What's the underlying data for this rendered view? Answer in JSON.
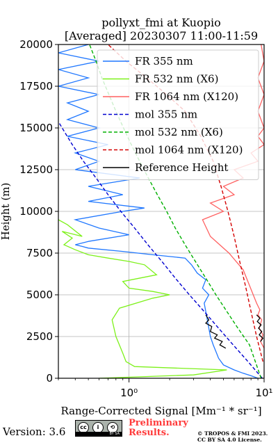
{
  "chart_data": {
    "type": "line",
    "title": "pollyxt_fmi at Kuopio",
    "subtitle": "[Averaged] 20230307 11:00-11:59",
    "xlabel": "Range-Corrected Signal [Mm⁻¹ * sr⁻¹]",
    "ylabel": "Height (m)",
    "xscale": "log",
    "xlim": [
      0.3,
      10
    ],
    "ylim": [
      0,
      20000
    ],
    "x_ticks": [
      1,
      10
    ],
    "x_tick_labels": [
      "10⁰",
      "10¹"
    ],
    "y_ticks": [
      0,
      2500,
      5000,
      7500,
      10000,
      12500,
      15000,
      17500,
      20000
    ],
    "y_tick_labels": [
      "0",
      "2500",
      "5000",
      "7500",
      "10000",
      "12500",
      "15000",
      "17500",
      "20000"
    ],
    "grid": true,
    "legend_position": "upper-right",
    "series": [
      {
        "name": "FR 355 nm",
        "color": "#1f77ff",
        "style": "solid",
        "points": [
          [
            9.0,
            0
          ],
          [
            8.0,
            150
          ],
          [
            7.0,
            300
          ],
          [
            6.0,
            500
          ],
          [
            5.0,
            800
          ],
          [
            4.6,
            1200
          ],
          [
            4.4,
            1600
          ],
          [
            4.2,
            2000
          ],
          [
            4.0,
            2500
          ],
          [
            3.9,
            3000
          ],
          [
            3.8,
            3500
          ],
          [
            3.7,
            4000
          ],
          [
            3.6,
            4500
          ],
          [
            3.9,
            5000
          ],
          [
            3.5,
            5400
          ],
          [
            3.7,
            5900
          ],
          [
            3.2,
            6300
          ],
          [
            2.9,
            6800
          ],
          [
            2.6,
            7200
          ],
          [
            1.5,
            7400
          ],
          [
            0.9,
            7600
          ],
          [
            0.5,
            7800
          ],
          [
            0.45,
            7900
          ],
          [
            0.4,
            8000
          ],
          [
            0.5,
            8200
          ],
          [
            1.0,
            8600
          ],
          [
            0.6,
            9000
          ],
          [
            0.4,
            9500
          ],
          [
            0.9,
            10000
          ],
          [
            1.3,
            10200
          ],
          [
            0.5,
            10600
          ],
          [
            0.9,
            11000
          ],
          [
            0.5,
            11500
          ],
          [
            1.2,
            12000
          ],
          [
            0.4,
            12500
          ],
          [
            0.6,
            13000
          ],
          [
            0.4,
            13500
          ],
          [
            0.7,
            14000
          ],
          [
            0.35,
            14500
          ],
          [
            0.6,
            15000
          ],
          [
            0.35,
            15500
          ],
          [
            0.5,
            16000
          ],
          [
            0.35,
            16500
          ],
          [
            0.6,
            17000
          ],
          [
            0.3,
            17500
          ],
          [
            0.5,
            18000
          ],
          [
            0.3,
            18500
          ],
          [
            0.6,
            19000
          ],
          [
            0.3,
            19500
          ],
          [
            0.5,
            20000
          ]
        ]
      },
      {
        "name": "FR 532 nm (X6)",
        "color": "#7df11a",
        "style": "solid",
        "points": [
          [
            0.6,
            0
          ],
          [
            3.0,
            200
          ],
          [
            5.3,
            500
          ],
          [
            1.1,
            700
          ],
          [
            0.95,
            1000
          ],
          [
            0.9,
            1500
          ],
          [
            0.8,
            2500
          ],
          [
            0.75,
            3500
          ],
          [
            0.85,
            4200
          ],
          [
            1.5,
            4800
          ],
          [
            2.0,
            5000
          ],
          [
            1.5,
            5200
          ],
          [
            1.0,
            5400
          ],
          [
            0.9,
            5800
          ],
          [
            1.6,
            6200
          ],
          [
            1.3,
            6800
          ],
          [
            1.0,
            7000
          ],
          [
            0.7,
            7200
          ],
          [
            0.5,
            7400
          ],
          [
            0.4,
            7700
          ],
          [
            0.33,
            8000
          ],
          [
            0.38,
            8400
          ],
          [
            0.32,
            8800
          ],
          [
            0.45,
            8500
          ],
          [
            0.35,
            9200
          ],
          [
            0.3,
            9500
          ]
        ]
      },
      {
        "name": "FR 1064 nm (X120)",
        "color": "#ff6161",
        "style": "solid",
        "points": [
          [
            10.0,
            1800
          ],
          [
            9.4,
            2200
          ],
          [
            9.8,
            2600
          ],
          [
            9.2,
            3000
          ],
          [
            9.6,
            3500
          ],
          [
            9.0,
            3800
          ],
          [
            9.3,
            4100
          ],
          [
            8.8,
            4500
          ],
          [
            7.0,
            6500
          ],
          [
            5.5,
            7500
          ],
          [
            4.0,
            8500
          ],
          [
            3.5,
            9500
          ],
          [
            5.0,
            10000
          ],
          [
            4.0,
            10500
          ],
          [
            6.0,
            11000
          ],
          [
            5.0,
            11500
          ],
          [
            7.0,
            12000
          ],
          [
            6.0,
            12500
          ],
          [
            9.0,
            13000
          ],
          [
            8.0,
            13500
          ],
          [
            10.0,
            14000
          ],
          [
            9.0,
            14500
          ],
          [
            10.0,
            15000
          ],
          [
            9.0,
            16000
          ],
          [
            10.0,
            17000
          ],
          [
            9.0,
            18000
          ],
          [
            10.0,
            19000
          ],
          [
            9.5,
            20000
          ]
        ]
      },
      {
        "name": "mol 355 nm",
        "color": "#0000d0",
        "style": "dashed",
        "points": [
          [
            9.7,
            0
          ],
          [
            7.6,
            1000
          ],
          [
            5.9,
            2000
          ],
          [
            4.6,
            3000
          ],
          [
            3.6,
            4000
          ],
          [
            2.8,
            5000
          ],
          [
            2.2,
            6000
          ],
          [
            1.75,
            7000
          ],
          [
            1.38,
            8000
          ],
          [
            1.1,
            9000
          ],
          [
            0.87,
            10000
          ],
          [
            0.7,
            11000
          ],
          [
            0.57,
            12000
          ],
          [
            0.46,
            13000
          ],
          [
            0.38,
            14000
          ],
          [
            0.32,
            15000
          ],
          [
            0.27,
            16000
          ]
        ]
      },
      {
        "name": "mol 532 nm (X6)",
        "color": "#00b000",
        "style": "dashed",
        "points": [
          [
            9.5,
            0
          ],
          [
            7.8,
            2000
          ],
          [
            6.4,
            3000
          ],
          [
            5.3,
            4000
          ],
          [
            4.4,
            5000
          ],
          [
            3.7,
            6000
          ],
          [
            3.1,
            7000
          ],
          [
            2.6,
            8000
          ],
          [
            2.2,
            9000
          ],
          [
            1.9,
            10000
          ],
          [
            1.62,
            11000
          ],
          [
            1.39,
            12000
          ],
          [
            1.2,
            13000
          ],
          [
            1.04,
            14000
          ],
          [
            0.91,
            15000
          ],
          [
            0.8,
            16000
          ],
          [
            0.71,
            17000
          ],
          [
            0.63,
            18000
          ],
          [
            0.57,
            19000
          ],
          [
            0.51,
            20000
          ]
        ]
      },
      {
        "name": "mol 1064 nm (X120)",
        "color": "#d40000",
        "style": "dashed",
        "points": [
          [
            9.8,
            1000
          ],
          [
            8.8,
            2500
          ],
          [
            8.0,
            4000
          ],
          [
            7.3,
            5500
          ],
          [
            6.6,
            7000
          ],
          [
            6.0,
            8500
          ],
          [
            5.4,
            10000
          ],
          [
            4.8,
            11500
          ],
          [
            4.2,
            13000
          ],
          [
            3.4,
            14500
          ],
          [
            2.6,
            16000
          ],
          [
            1.9,
            17000
          ],
          [
            1.35,
            18000
          ],
          [
            0.95,
            19000
          ],
          [
            0.7,
            20000
          ]
        ]
      },
      {
        "name": "Reference Height",
        "color": "#000000",
        "style": "solid",
        "points": [
          [
            3.7,
            3800
          ],
          [
            3.9,
            3500
          ],
          [
            3.7,
            3300
          ],
          [
            4.1,
            3100
          ],
          [
            4.0,
            2800
          ],
          [
            4.5,
            2600
          ],
          [
            4.3,
            2400
          ],
          [
            4.9,
            2200
          ],
          [
            4.7,
            2000
          ],
          [
            5.2,
            1800
          ]
        ]
      },
      {
        "name": "Reference Height",
        "color": "#000000",
        "style": "solid",
        "points": [
          [
            8.8,
            3800
          ],
          [
            9.3,
            3600
          ],
          [
            8.9,
            3400
          ],
          [
            9.5,
            3200
          ],
          [
            9.1,
            3000
          ],
          [
            9.6,
            2800
          ],
          [
            9.2,
            2600
          ],
          [
            9.8,
            2400
          ],
          [
            9.4,
            2200
          ]
        ]
      }
    ]
  },
  "footer": {
    "version": "Version: 3.6",
    "license_badge": {
      "icon": "cc-by-sa-icon",
      "label": "BY SA"
    },
    "preliminary_line1": "Preliminary",
    "preliminary_line2": "Results.",
    "copyright_line1": "© TROPOS & FMI 2023.",
    "copyright_line2": "CC BY SA 4.0 License."
  }
}
